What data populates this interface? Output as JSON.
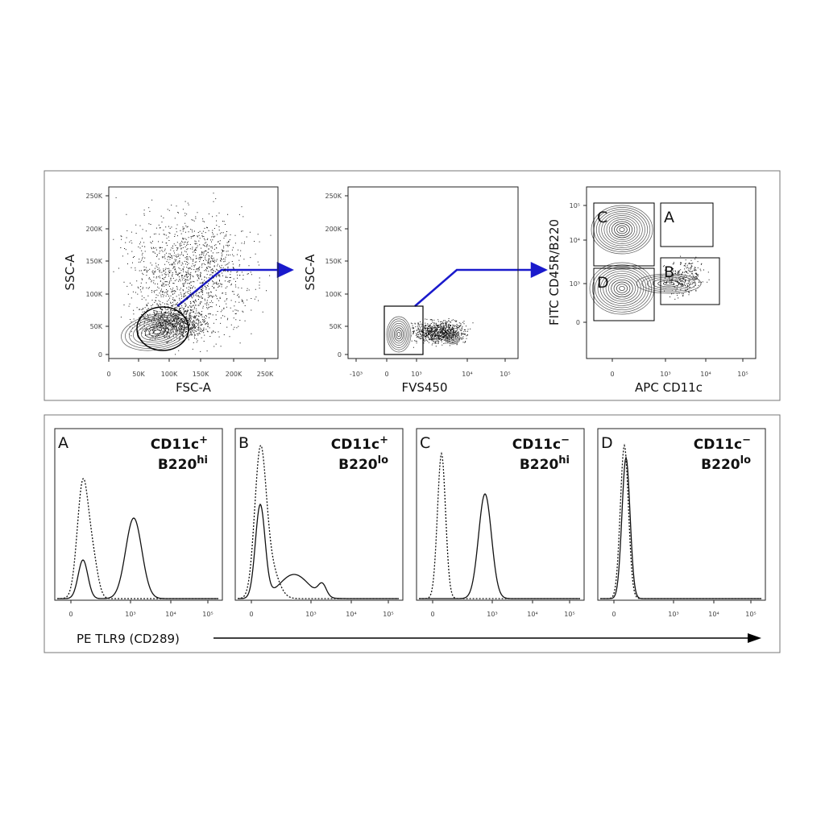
{
  "top_panels": [
    {
      "x_label": "FSC-A",
      "y_label": "SSC-A",
      "x_ticks": [
        "0",
        "50K",
        "100K",
        "150K",
        "200K",
        "250K"
      ],
      "y_ticks": [
        "0",
        "50K",
        "100K",
        "150K",
        "200K",
        "250K"
      ]
    },
    {
      "x_label": "FVS450",
      "y_label": "SSC-A",
      "x_ticks": [
        "-10³",
        "0",
        "10³",
        "10⁴",
        "10⁵"
      ],
      "y_ticks": [
        "0",
        "50K",
        "100K",
        "150K",
        "200K",
        "250K"
      ]
    },
    {
      "x_label": "APC CD11c",
      "y_label": "FITC CD45R/B220",
      "x_ticks": [
        "0",
        "10³",
        "10⁴",
        "10⁵"
      ],
      "y_ticks": [
        "0",
        "10³",
        "10⁴",
        "10⁵"
      ],
      "gates": [
        "C",
        "A",
        "D",
        "B"
      ]
    }
  ],
  "histograms": [
    {
      "letter": "A",
      "marker1": "CD11c",
      "sup1": "+",
      "marker2": "B220",
      "sup2": "hi"
    },
    {
      "letter": "B",
      "marker1": "CD11c",
      "sup1": "+",
      "marker2": "B220",
      "sup2": "lo"
    },
    {
      "letter": "C",
      "marker1": "CD11c",
      "sup1": "−",
      "marker2": "B220",
      "sup2": "hi"
    },
    {
      "letter": "D",
      "marker1": "CD11c",
      "sup1": "−",
      "marker2": "B220",
      "sup2": "lo"
    }
  ],
  "hist_x_ticks": [
    "0",
    "10³",
    "10⁴",
    "10⁵"
  ],
  "hist_axis_label": "PE TLR9 (CD289)"
}
